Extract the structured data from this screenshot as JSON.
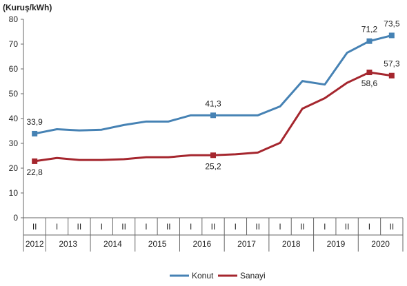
{
  "chart_data": {
    "type": "line",
    "ylabel": "(Kuruş/kWh)",
    "ylim": [
      0,
      80
    ],
    "yticks": [
      0,
      10,
      20,
      30,
      40,
      50,
      60,
      70,
      80
    ],
    "grid": false,
    "legend_position": "bottom-center",
    "categories": [
      "2012 II",
      "2013 I",
      "2013 II",
      "2014 I",
      "2014 II",
      "2015 I",
      "2015 II",
      "2016 I",
      "2016 II",
      "2017 I",
      "2017 II",
      "2018 I",
      "2018 II",
      "2019 I",
      "2019 II",
      "2020 I",
      "2020 II"
    ],
    "period_labels": [
      "II",
      "I",
      "II",
      "I",
      "II",
      "I",
      "II",
      "I",
      "II",
      "I",
      "II",
      "I",
      "II",
      "I",
      "II",
      "I",
      "II"
    ],
    "years": [
      {
        "label": "2012",
        "start": 0,
        "end": 0
      },
      {
        "label": "2013",
        "start": 1,
        "end": 2
      },
      {
        "label": "2014",
        "start": 3,
        "end": 4
      },
      {
        "label": "2015",
        "start": 5,
        "end": 6
      },
      {
        "label": "2016",
        "start": 7,
        "end": 8
      },
      {
        "label": "2017",
        "start": 9,
        "end": 10
      },
      {
        "label": "2018",
        "start": 11,
        "end": 12
      },
      {
        "label": "2019",
        "start": 13,
        "end": 14
      },
      {
        "label": "2020",
        "start": 15,
        "end": 16
      }
    ],
    "series": [
      {
        "name": "Konut",
        "color": "#4682B4",
        "values": [
          33.9,
          35.7,
          35.2,
          35.5,
          37.4,
          38.8,
          38.8,
          41.3,
          41.3,
          41.3,
          41.3,
          44.9,
          55.1,
          53.7,
          66.5,
          71.2,
          73.5
        ],
        "marker_indices": [
          0,
          8,
          15,
          16
        ],
        "labels": [
          {
            "index": 0,
            "text": "33,9"
          },
          {
            "index": 8,
            "text": "41,3"
          },
          {
            "index": 15,
            "text": "71,2"
          },
          {
            "index": 16,
            "text": "73,5"
          }
        ]
      },
      {
        "name": "Sanayi",
        "color": "#A5262E",
        "values": [
          22.8,
          24.1,
          23.3,
          23.3,
          23.6,
          24.4,
          24.4,
          25.2,
          25.2,
          25.6,
          26.3,
          30.2,
          44.0,
          48.2,
          54.4,
          58.6,
          57.3
        ],
        "marker_indices": [
          0,
          8,
          15,
          16
        ],
        "labels": [
          {
            "index": 0,
            "text": "22,8"
          },
          {
            "index": 8,
            "text": "25,2"
          },
          {
            "index": 15,
            "text": "58,6"
          },
          {
            "index": 16,
            "text": "57,3"
          }
        ]
      }
    ]
  }
}
